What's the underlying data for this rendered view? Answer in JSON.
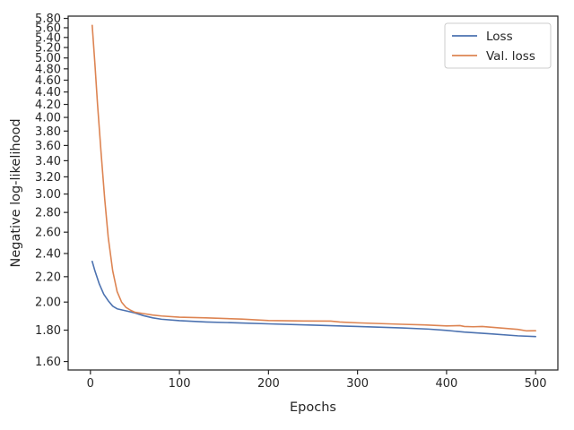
{
  "chart_data": {
    "type": "line",
    "title": "",
    "xlabel": "Epochs",
    "ylabel": "Negative log-likelihood",
    "xlim": [
      -25,
      525
    ],
    "ylim": [
      1.55,
      5.85
    ],
    "yscale": "log",
    "grid": false,
    "legend_position": "top-right",
    "x_ticks": [
      0,
      100,
      200,
      300,
      400,
      500
    ],
    "x_tick_labels": [
      "0",
      "100",
      "200",
      "300",
      "400",
      "500"
    ],
    "y_ticks": [
      1.6,
      1.8,
      2.0,
      2.2,
      2.4,
      2.6,
      2.8,
      3.0,
      3.2,
      3.4,
      3.6,
      3.8,
      4.0,
      4.2,
      4.4,
      4.6,
      4.8,
      5.0,
      5.2,
      5.4,
      5.6,
      5.8
    ],
    "y_tick_labels": [
      "1.60",
      "1.80",
      "2.00",
      "2.20",
      "2.40",
      "2.60",
      "2.80",
      "3.00",
      "3.20",
      "3.40",
      "3.60",
      "3.80",
      "4.00",
      "4.20",
      "4.40",
      "4.60",
      "4.80",
      "5.00",
      "5.20",
      "5.40",
      "5.60",
      "5.80"
    ],
    "series": [
      {
        "name": "Loss",
        "color": "#4c72b0",
        "x": [
          2,
          5,
          10,
          15,
          20,
          25,
          30,
          40,
          50,
          60,
          70,
          80,
          100,
          130,
          170,
          200,
          250,
          300,
          350,
          380,
          400,
          420,
          450,
          480,
          500
        ],
        "y": [
          2.33,
          2.25,
          2.14,
          2.06,
          2.01,
          1.97,
          1.95,
          1.935,
          1.92,
          1.9,
          1.885,
          1.875,
          1.865,
          1.856,
          1.849,
          1.843,
          1.834,
          1.825,
          1.815,
          1.807,
          1.798,
          1.787,
          1.775,
          1.762,
          1.757
        ]
      },
      {
        "name": "Val. loss",
        "color": "#dd8452",
        "x": [
          2,
          5,
          8,
          12,
          16,
          20,
          25,
          30,
          35,
          40,
          45,
          50,
          60,
          70,
          80,
          100,
          130,
          170,
          200,
          240,
          270,
          280,
          300,
          350,
          375,
          400,
          415,
          420,
          430,
          440,
          460,
          480,
          490,
          500
        ],
        "y": [
          5.65,
          4.9,
          4.2,
          3.5,
          2.95,
          2.55,
          2.25,
          2.08,
          2.0,
          1.96,
          1.94,
          1.925,
          1.915,
          1.905,
          1.898,
          1.89,
          1.885,
          1.876,
          1.866,
          1.863,
          1.862,
          1.856,
          1.85,
          1.84,
          1.836,
          1.829,
          1.831,
          1.825,
          1.823,
          1.825,
          1.815,
          1.805,
          1.795,
          1.796
        ]
      }
    ]
  }
}
